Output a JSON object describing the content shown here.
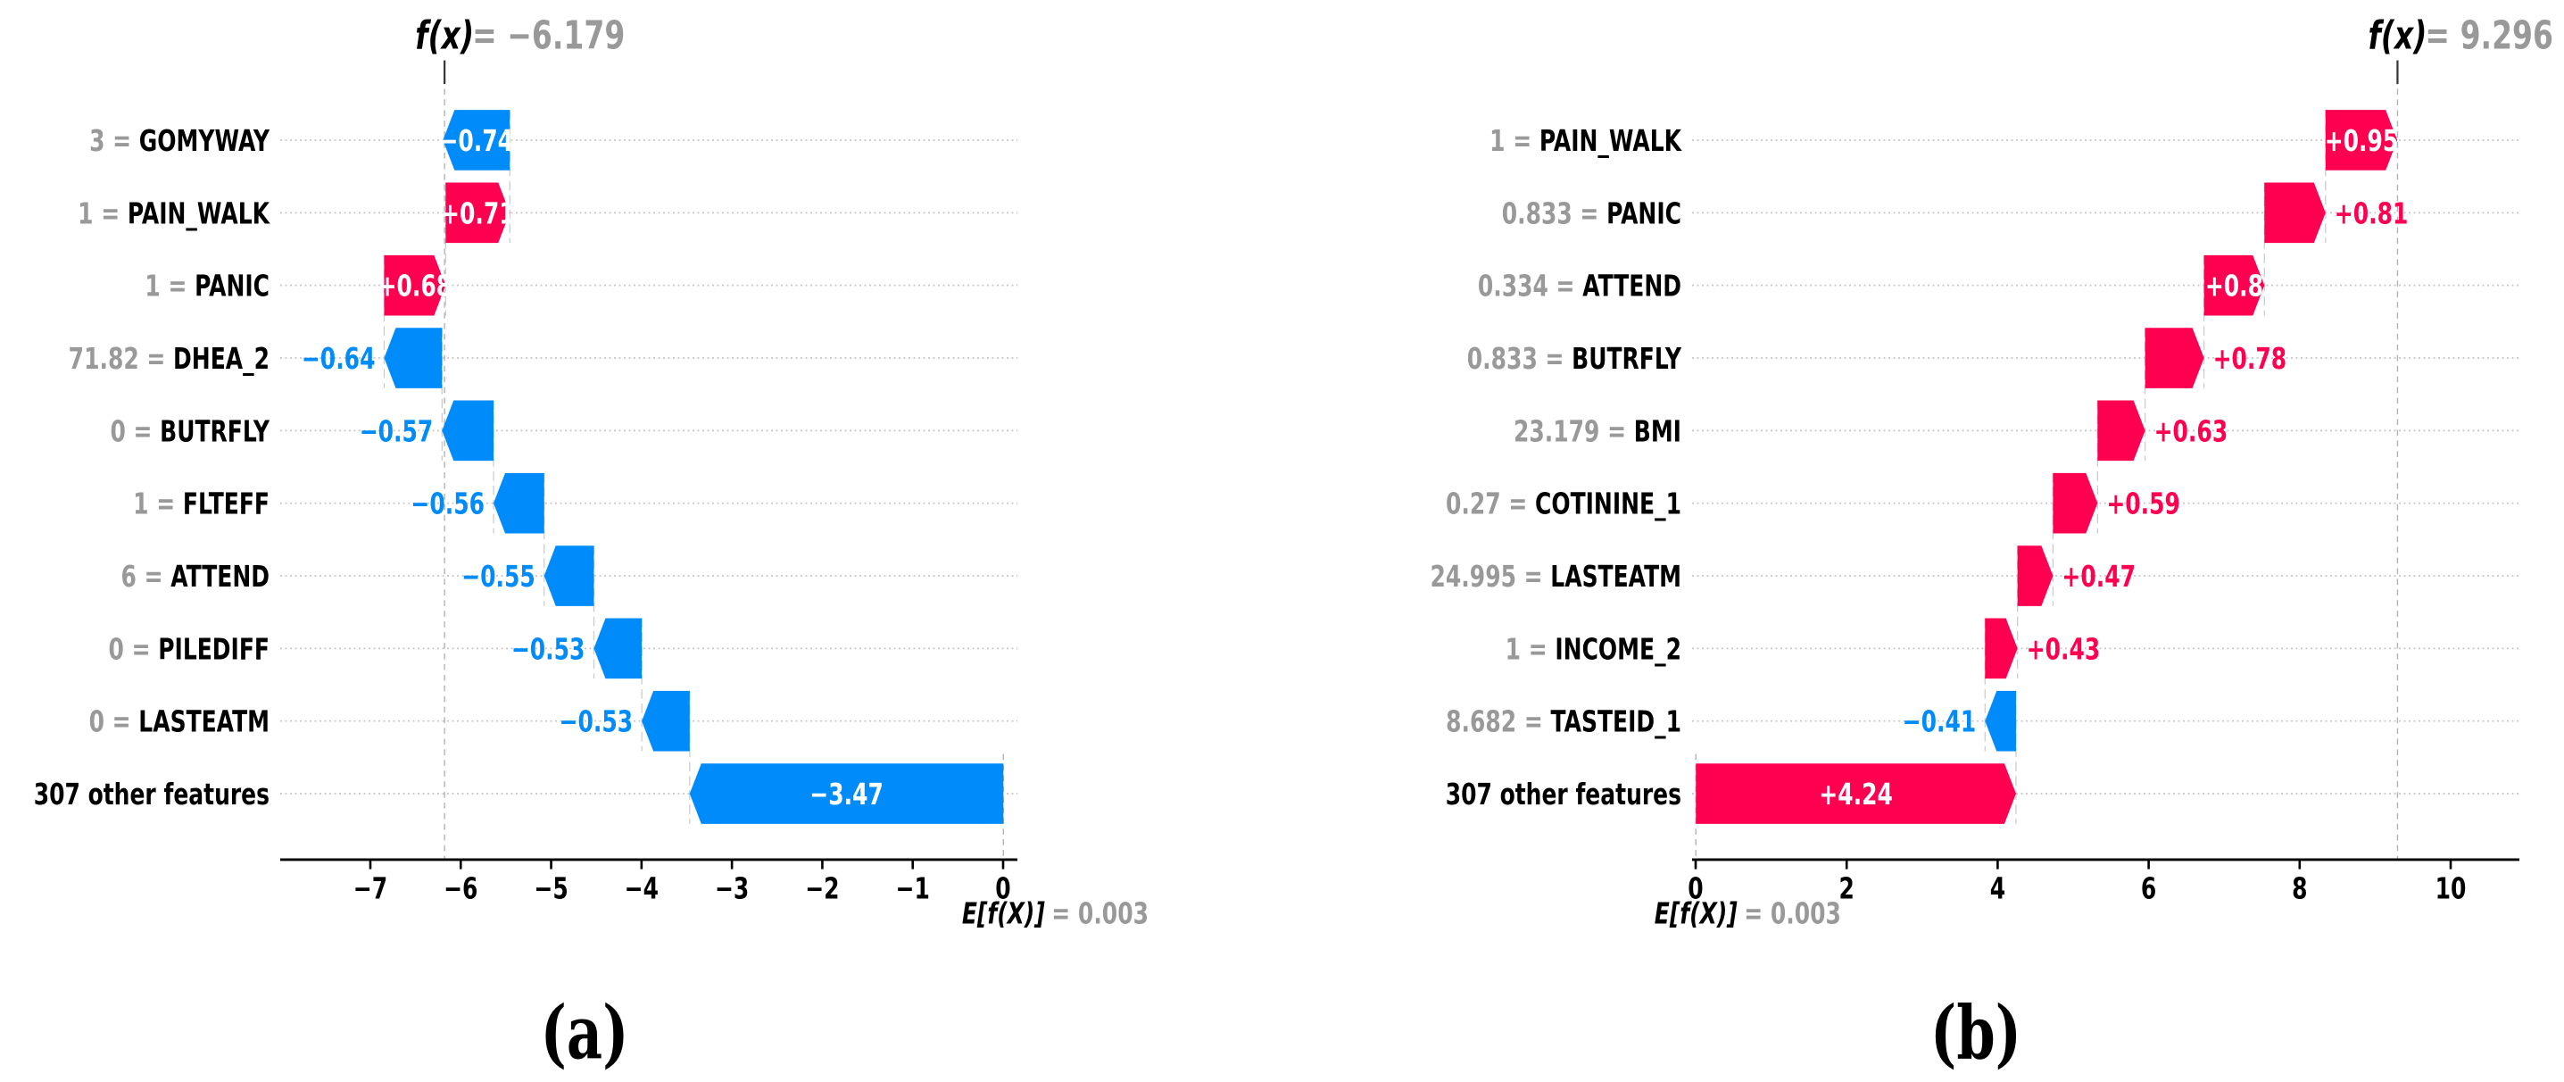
{
  "figure": {
    "background": "#ffffff",
    "description": "Two SHAP waterfall plots side by side"
  },
  "chart_data": [
    {
      "type": "waterfall",
      "panel_caption": "(a)",
      "fx": {
        "label": "f(x)",
        "equals": "=",
        "value_text": "−6.179",
        "value": -6.179
      },
      "ef": {
        "label": "E[f(X)]",
        "equals": "=",
        "value_text": "0.003",
        "value": 0.003
      },
      "x_axis": {
        "ticks": [
          -7,
          -6,
          -5,
          -4,
          -3,
          -2,
          -1,
          0
        ],
        "tick_labels": [
          "−7",
          "−6",
          "−5",
          "−4",
          "−3",
          "−2",
          "−1",
          "0"
        ],
        "range": [
          -8.0,
          0.16
        ],
        "grid": "dotted-rows"
      },
      "colors": {
        "positive": "#ff0051",
        "negative": "#008bfb",
        "gray_text": "#999999"
      },
      "rows": [
        {
          "data_value": "3",
          "feature": "GOMYWAY",
          "shap": -0.74,
          "shap_text": "−0.74",
          "label_placement": "inside"
        },
        {
          "data_value": "1",
          "feature": "PAIN_WALK",
          "shap": 0.71,
          "shap_text": "+0.71",
          "label_placement": "inside"
        },
        {
          "data_value": "1",
          "feature": "PANIC",
          "shap": 0.68,
          "shap_text": "+0.68",
          "label_placement": "inside"
        },
        {
          "data_value": "71.82",
          "feature": "DHEA_2",
          "shap": -0.64,
          "shap_text": "−0.64",
          "label_placement": "outside"
        },
        {
          "data_value": "0",
          "feature": "BUTRFLY",
          "shap": -0.57,
          "shap_text": "−0.57",
          "label_placement": "outside"
        },
        {
          "data_value": "1",
          "feature": "FLTEFF",
          "shap": -0.56,
          "shap_text": "−0.56",
          "label_placement": "outside"
        },
        {
          "data_value": "6",
          "feature": "ATTEND",
          "shap": -0.55,
          "shap_text": "−0.55",
          "label_placement": "outside"
        },
        {
          "data_value": "0",
          "feature": "PILEDIFF",
          "shap": -0.53,
          "shap_text": "−0.53",
          "label_placement": "outside"
        },
        {
          "data_value": "0",
          "feature": "LASTEATM",
          "shap": -0.53,
          "shap_text": "−0.53",
          "label_placement": "outside"
        },
        {
          "data_value": "",
          "feature": "307 other features",
          "shap": -3.47,
          "shap_text": "−3.47",
          "label_placement": "inside"
        }
      ]
    },
    {
      "type": "waterfall",
      "panel_caption": "(b)",
      "fx": {
        "label": "f(x)",
        "equals": "=",
        "value_text": "9.296",
        "value": 9.296
      },
      "ef": {
        "label": "E[f(X)]",
        "equals": "=",
        "value_text": "0.003",
        "value": 0.003
      },
      "x_axis": {
        "ticks": [
          0,
          2,
          4,
          6,
          8,
          10
        ],
        "tick_labels": [
          "0",
          "2",
          "4",
          "6",
          "8",
          "10"
        ],
        "range": [
          -0.1,
          10.92
        ],
        "grid": "dotted-rows"
      },
      "colors": {
        "positive": "#ff0051",
        "negative": "#008bfb",
        "gray_text": "#999999"
      },
      "rows": [
        {
          "data_value": "1",
          "feature": "PAIN_WALK",
          "shap": 0.95,
          "shap_text": "+0.95",
          "label_placement": "inside"
        },
        {
          "data_value": "0.833",
          "feature": "PANIC",
          "shap": 0.81,
          "shap_text": "+0.81",
          "label_placement": "outside"
        },
        {
          "data_value": "0.334",
          "feature": "ATTEND",
          "shap": 0.8,
          "shap_text": "+0.8",
          "label_placement": "inside"
        },
        {
          "data_value": "0.833",
          "feature": "BUTRFLY",
          "shap": 0.78,
          "shap_text": "+0.78",
          "label_placement": "outside"
        },
        {
          "data_value": "23.179",
          "feature": "BMI",
          "shap": 0.63,
          "shap_text": "+0.63",
          "label_placement": "outside"
        },
        {
          "data_value": "0.27",
          "feature": "COTININE_1",
          "shap": 0.59,
          "shap_text": "+0.59",
          "label_placement": "outside"
        },
        {
          "data_value": "24.995",
          "feature": "LASTEATM",
          "shap": 0.47,
          "shap_text": "+0.47",
          "label_placement": "outside"
        },
        {
          "data_value": "1",
          "feature": "INCOME_2",
          "shap": 0.43,
          "shap_text": "+0.43",
          "label_placement": "outside"
        },
        {
          "data_value": "8.682",
          "feature": "TASTEID_1",
          "shap": -0.41,
          "shap_text": "−0.41",
          "label_placement": "outside"
        },
        {
          "data_value": "",
          "feature": "307 other features",
          "shap": 4.24,
          "shap_text": "+4.24",
          "label_placement": "inside"
        }
      ]
    }
  ]
}
